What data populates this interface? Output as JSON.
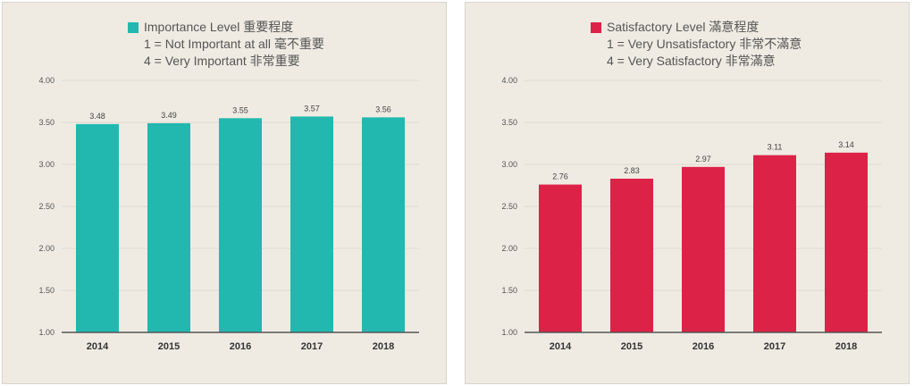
{
  "chart_data": [
    {
      "type": "bar",
      "legend": {
        "title": "Importance Level 重要程度",
        "lines": [
          "1 = Not Important at all 毫不重要",
          "4 = Very Important 非常重要"
        ]
      },
      "categories": [
        "2014",
        "2015",
        "2016",
        "2017",
        "2018"
      ],
      "series": [
        {
          "name": "Importance Level 重要程度",
          "values": [
            3.48,
            3.49,
            3.55,
            3.57,
            3.56
          ],
          "color": "#22b8b0"
        }
      ],
      "yticks": [
        "1.00",
        "1.50",
        "2.00",
        "2.50",
        "3.00",
        "3.50",
        "4.00"
      ],
      "ylim": [
        1,
        4
      ],
      "grid": true,
      "legend_placement": "top-center"
    },
    {
      "type": "bar",
      "legend": {
        "title": "Satisfactory Level 滿意程度",
        "lines": [
          "1 = Very Unsatisfactory 非常不滿意",
          "4 = Very Satisfactory 非常滿意"
        ]
      },
      "categories": [
        "2014",
        "2015",
        "2016",
        "2017",
        "2018"
      ],
      "series": [
        {
          "name": "Satisfactory Level 滿意程度",
          "values": [
            2.76,
            2.83,
            2.97,
            3.11,
            3.14
          ],
          "color": "#dd2247"
        }
      ],
      "yticks": [
        "1.00",
        "1.50",
        "2.00",
        "2.50",
        "3.00",
        "3.50",
        "4.00"
      ],
      "ylim": [
        1,
        4
      ],
      "grid": true,
      "legend_placement": "top-center"
    }
  ]
}
